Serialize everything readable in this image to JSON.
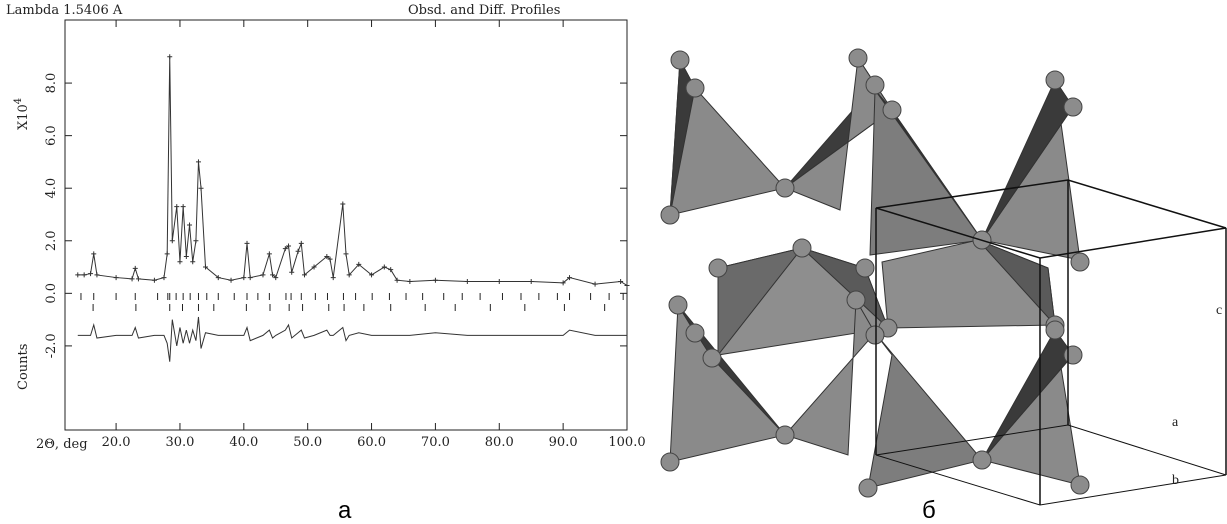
{
  "chart_data": {
    "type": "line",
    "annotation": "Lambda 1.5406 A",
    "title": "Obsd. and Diff. Profiles",
    "ylabel": "X10",
    "ylabel_exponent": "4",
    "ylabel2": "Counts",
    "xlabel": "2Θ, deg",
    "x": [
      14,
      15,
      16,
      16.5,
      17,
      20,
      22.5,
      23,
      23.5,
      26,
      27.5,
      28,
      28.4,
      28.8,
      29.5,
      30,
      30.5,
      31,
      31.5,
      32,
      32.5,
      32.9,
      33.3,
      34,
      36,
      38,
      40,
      40.5,
      41,
      43,
      44,
      44.5,
      45,
      46.5,
      47,
      47.5,
      48.5,
      49,
      49.5,
      51,
      53,
      53.5,
      54,
      55.5,
      56,
      56.5,
      58,
      60,
      62,
      63,
      64,
      66,
      70,
      75,
      80,
      85,
      90,
      91,
      95,
      99,
      100
    ],
    "series": [
      {
        "color": "#333333",
        "values": [
          0.7,
          0.7,
          0.75,
          1.5,
          0.7,
          0.6,
          0.55,
          0.95,
          0.55,
          0.5,
          0.6,
          1.5,
          9.0,
          2.0,
          3.3,
          1.2,
          3.3,
          1.4,
          2.6,
          1.2,
          2.0,
          5.0,
          4.0,
          1.0,
          0.6,
          0.5,
          0.6,
          1.9,
          0.6,
          0.7,
          1.5,
          0.7,
          0.6,
          1.7,
          1.8,
          0.8,
          1.6,
          1.9,
          0.7,
          1.0,
          1.4,
          1.3,
          0.6,
          3.4,
          1.5,
          0.7,
          1.1,
          0.7,
          1.0,
          0.9,
          0.5,
          0.45,
          0.5,
          0.45,
          0.45,
          0.45,
          0.4,
          0.6,
          0.35,
          0.45,
          0.3
        ]
      },
      {
        "color": "#333333",
        "values": [
          -1.6,
          -1.6,
          -1.6,
          -1.2,
          -1.7,
          -1.6,
          -1.6,
          -1.3,
          -1.7,
          -1.6,
          -1.6,
          -1.9,
          -2.6,
          -1.0,
          -2.0,
          -1.3,
          -1.9,
          -1.4,
          -1.9,
          -1.4,
          -1.8,
          -0.9,
          -2.1,
          -1.5,
          -1.6,
          -1.6,
          -1.6,
          -1.3,
          -1.8,
          -1.6,
          -1.4,
          -1.7,
          -1.6,
          -1.4,
          -1.2,
          -1.7,
          -1.5,
          -1.4,
          -1.7,
          -1.6,
          -1.4,
          -1.6,
          -1.6,
          -1.3,
          -1.8,
          -1.6,
          -1.5,
          -1.6,
          -1.6,
          -1.6,
          -1.6,
          -1.6,
          -1.5,
          -1.6,
          -1.6,
          -1.6,
          -1.6,
          -1.4,
          -1.6,
          -1.6,
          -1.6
        ]
      }
    ],
    "reflections_1": [
      14.5,
      16.5,
      20.0,
      23.0,
      26.5,
      28.1,
      28.4,
      29.4,
      30.5,
      31.6,
      32.9,
      34.2,
      36.0,
      38.5,
      40.5,
      42.2,
      44.0,
      46.6,
      47.4,
      49.0,
      51.2,
      53.1,
      55.6,
      57.5,
      60.1,
      62.8,
      65.4,
      68.0,
      71.3,
      74.2,
      77.0,
      80.5,
      83.4,
      86.2,
      89.1,
      91.0,
      94.3,
      97.2,
      99.4
    ],
    "reflections_2": [
      16.4,
      23.1,
      28.4,
      30.4,
      32.9,
      35.3,
      40.4,
      44.1,
      47.1,
      49.2,
      53.3,
      55.7,
      58.8,
      63.0,
      68.4,
      73.1,
      78.6,
      84.0,
      90.2,
      96.5
    ],
    "xlim": [
      12,
      100
    ],
    "ylim": [
      -5.2,
      10.4
    ],
    "xticks": [
      {
        "value": 20,
        "label": "20.0"
      },
      {
        "value": 30,
        "label": "30.0"
      },
      {
        "value": 40,
        "label": "40.0"
      },
      {
        "value": 50,
        "label": "50.0"
      },
      {
        "value": 60,
        "label": "60.0"
      },
      {
        "value": 70,
        "label": "70.0"
      },
      {
        "value": 80,
        "label": "80.0"
      },
      {
        "value": 90,
        "label": "90.0"
      },
      {
        "value": 100,
        "label": "100.0"
      }
    ],
    "yticks": [
      {
        "value": -2,
        "label": "-2.0"
      },
      {
        "value": 0,
        "label": "0.0"
      },
      {
        "value": 2,
        "label": "2.0"
      },
      {
        "value": 4,
        "label": "4.0"
      },
      {
        "value": 6,
        "label": "6.0"
      },
      {
        "value": 8,
        "label": "8.0"
      }
    ],
    "grid": false
  },
  "panel_labels": [
    "а",
    "б"
  ],
  "structure": {
    "axis_labels": [
      "c",
      "a",
      "b"
    ]
  }
}
